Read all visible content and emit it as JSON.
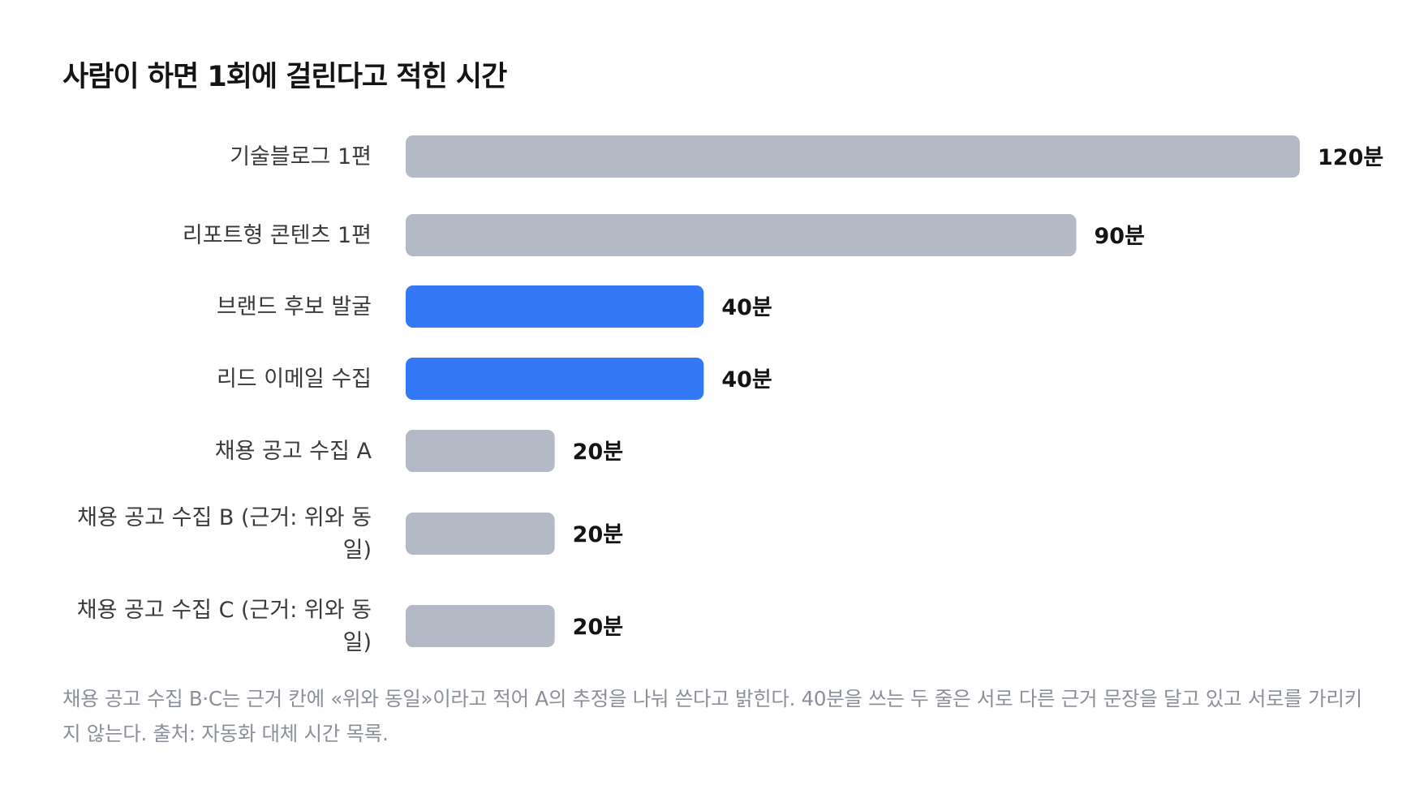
{
  "chart_data": {
    "type": "bar",
    "orientation": "horizontal",
    "title": "사람이 하면 1회에 걸린다고 적힌 시간",
    "categories": [
      "기술블로그 1편",
      "리포트형 콘텐츠 1편",
      "브랜드 후보 발굴",
      "리드 이메일 수집",
      "채용 공고 수집 A",
      "채용 공고 수집 B (근거: 위와 동일)",
      "채용 공고 수집 C (근거: 위와 동일)"
    ],
    "values": [
      120,
      90,
      40,
      40,
      20,
      20,
      20
    ],
    "value_labels": [
      "120분",
      "90분",
      "40분",
      "40분",
      "20분",
      "20분",
      "20분"
    ],
    "highlighted": [
      false,
      false,
      true,
      true,
      false,
      false,
      false
    ],
    "xlim": [
      0,
      120
    ],
    "grid": false,
    "colors": {
      "default": "#b3bac5",
      "highlight": "#3478f6"
    },
    "caption": "채용 공고 수집 B·C는 근거 칸에 «위와 동일»이라고 적어 A의 추정을 나눠 쓴다고 밝힌다. 40분을 쓰는 두 줄은 서로 다른 근거 문장을 달고 있고 서로를 가리키지 않는다. 출처: 자동화 대체 시간 목록."
  }
}
